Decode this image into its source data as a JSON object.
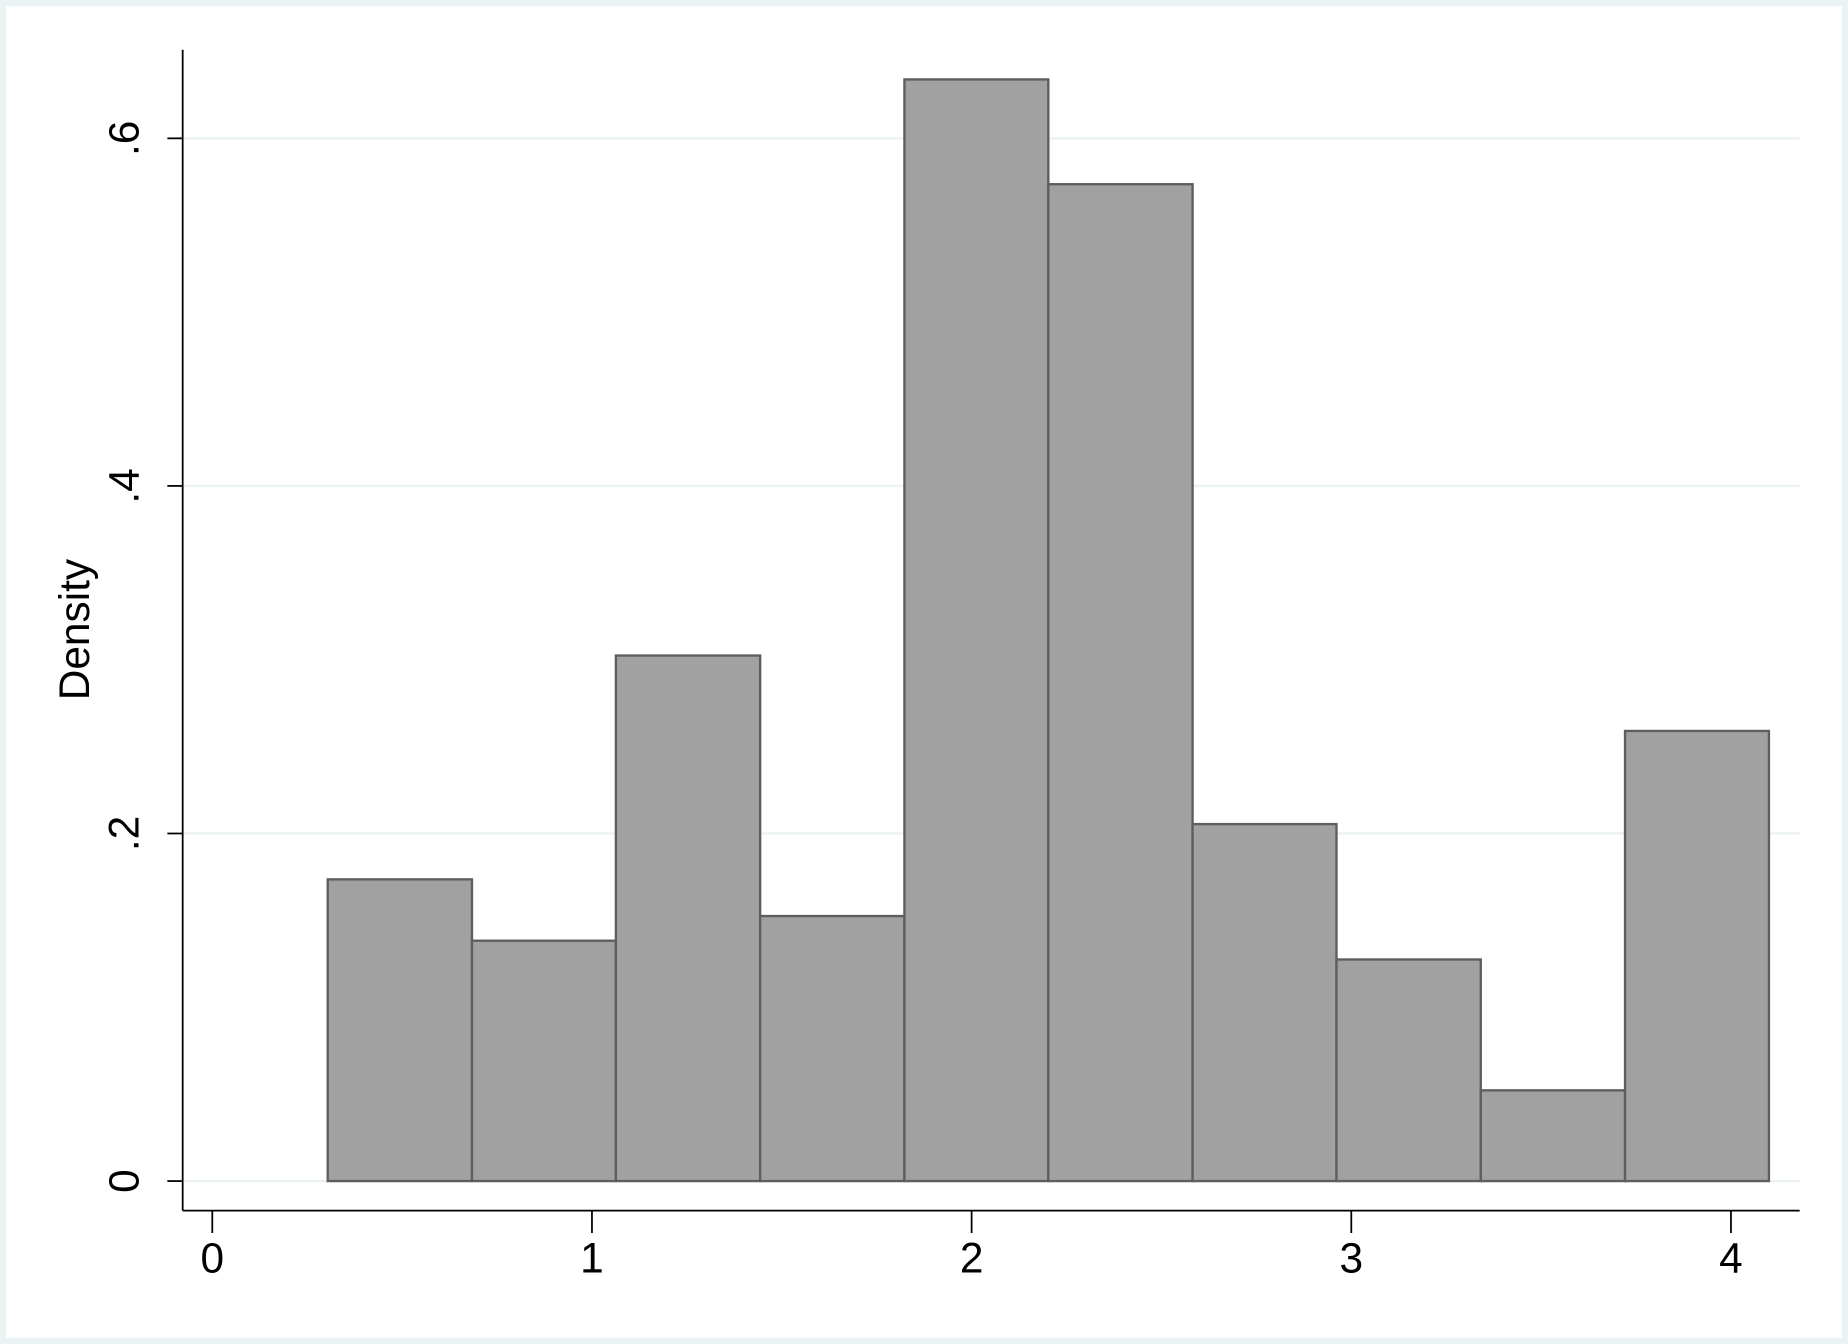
{
  "chart_data": {
    "type": "histogram",
    "y_label": "Density",
    "bins": [
      0.304,
      0.684,
      1.063,
      1.443,
      1.823,
      2.202,
      2.582,
      2.961,
      3.341,
      3.721,
      4.1
    ],
    "values": [
      0.1736,
      0.1383,
      0.3024,
      0.1525,
      0.6339,
      0.5736,
      0.2054,
      0.1275,
      0.0522,
      0.259
    ],
    "color": "#a1a1a1",
    "xlim": [
      -0.078,
      4.181
    ],
    "xticks": [
      0,
      1,
      2,
      3,
      4
    ],
    "ylim": [
      -0.017,
      0.651
    ],
    "yticks": [
      0,
      {
        "value": 0.2,
        "label": ".2"
      },
      {
        "value": 0.4,
        "label": ".4"
      },
      {
        "value": 0.6,
        "label": ".6"
      }
    ],
    "grid": true
  }
}
